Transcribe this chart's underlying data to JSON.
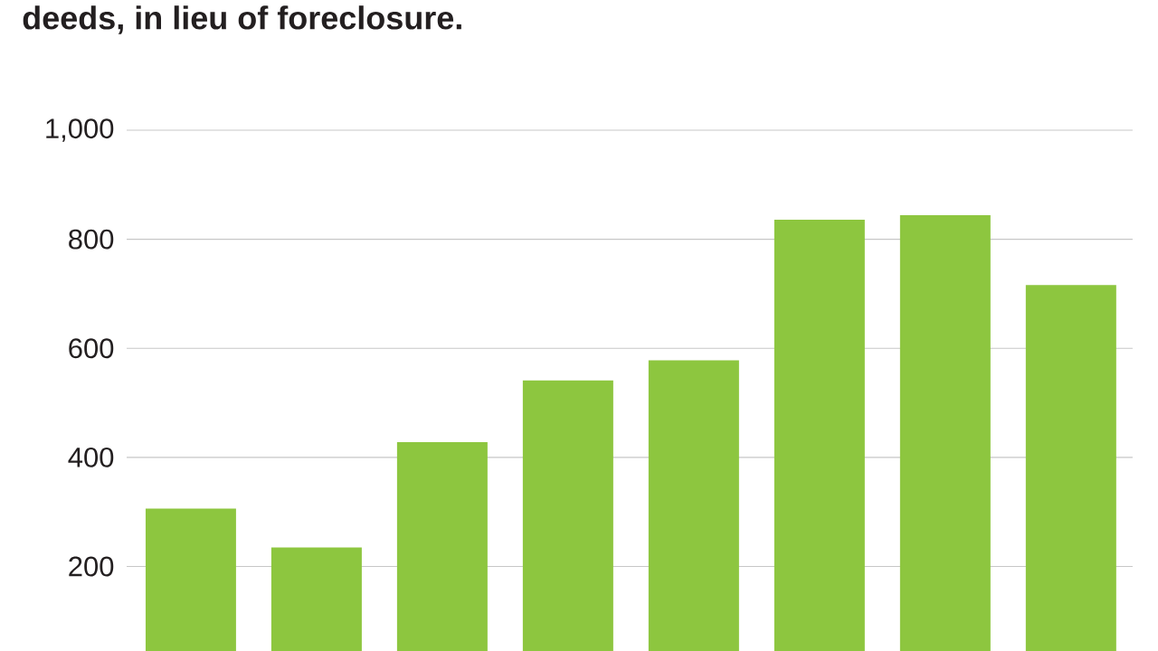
{
  "chart_data": {
    "type": "bar",
    "title": "deeds, in lieu of foreclosure.",
    "categories": [
      null,
      null,
      null,
      null,
      null,
      null,
      null,
      null
    ],
    "values": [
      306,
      235,
      428,
      541,
      578,
      836,
      844,
      716
    ],
    "color": "#8dc63f",
    "ylim": [
      45,
      1000
    ],
    "yticks": [
      200,
      400,
      600,
      800,
      {
        "value": 1000,
        "label": "1,000"
      }
    ],
    "grid": "y"
  }
}
